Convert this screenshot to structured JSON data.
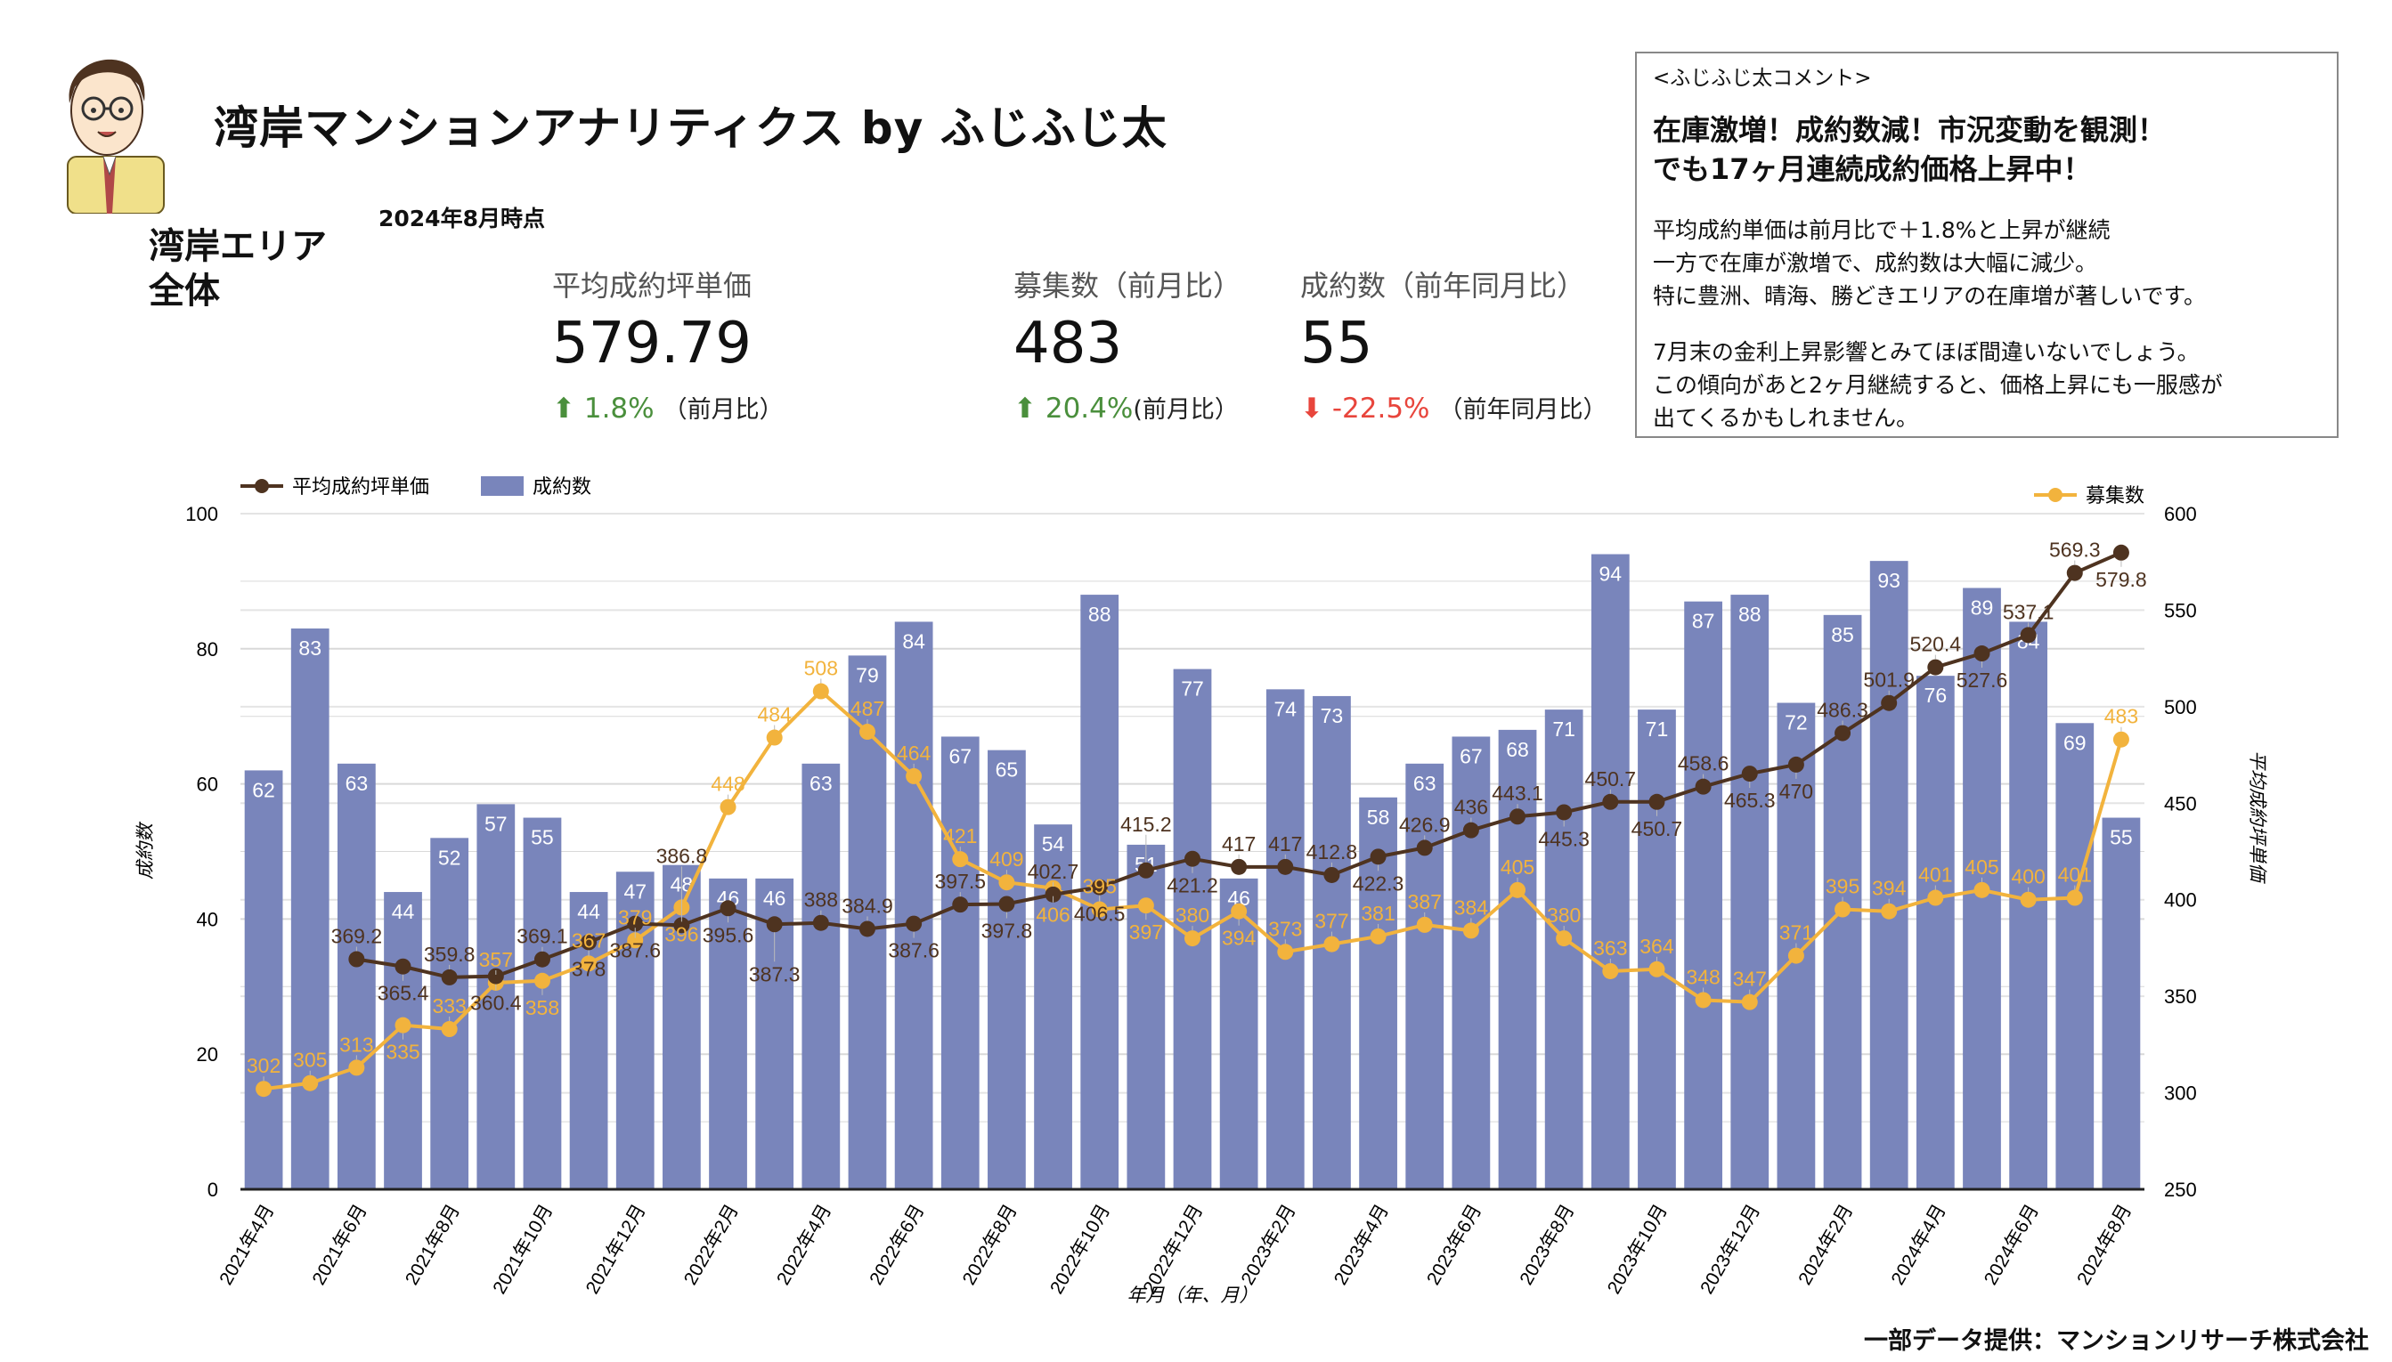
{
  "header": {
    "title": "湾岸マンションアナリティクス by ふじふじ太",
    "as_of": "2024年8月時点",
    "area": "湾岸エリア全体"
  },
  "kpis": [
    {
      "label": "平均成約坪単価",
      "value": "579.79",
      "direction": "up",
      "change": "1.8%",
      "note": "（前月比）"
    },
    {
      "label": "募集数（前月比）",
      "value": "483",
      "direction": "up",
      "change": "20.4%",
      "note": "(前月比）"
    },
    {
      "label": "成約数（前年同月比）",
      "value": "55",
      "direction": "down",
      "change": "-22.5%",
      "note": "（前年同月比）"
    }
  ],
  "comment": {
    "header": "<ふじふじ太コメント>",
    "headline_1": "在庫激増！成約数減！市況変動を観測！",
    "headline_2": "でも17ヶ月連続成約価格上昇中！",
    "paragraph_1": "平均成約単価は前月比で＋1.8%と上昇が継続\n一方で在庫が激増で、成約数は大幅に減少。\n特に豊洲、晴海、勝どきエリアの在庫増が著しいです。",
    "paragraph_2": "7月末の金利上昇影響とみてほぼ間違いないでしょう。\nこの傾向があと2ヶ月継続すると、価格上昇にも一服感が\n出てくるかもしれません。"
  },
  "footer": "一部データ提供：マンションリサーチ株式会社",
  "colors": {
    "bars": "#7985bb",
    "price_line": "#4e3320",
    "listings_line": "#f2b33d",
    "up": "#4a8f3c",
    "down": "#e8453c"
  },
  "chart_data": {
    "type": "bar+line",
    "xlabel": "年月（年、月）",
    "ylabel_left": "成約数",
    "ylabel_right": "平均成約坪単価",
    "ylim_left": [
      0,
      100
    ],
    "yticks_left": [
      0,
      20,
      40,
      60,
      80,
      100
    ],
    "ylim_right": [
      250,
      600
    ],
    "yticks_right": [
      250,
      300,
      350,
      400,
      450,
      500,
      550,
      600
    ],
    "grid": true,
    "legend_left": [
      "平均成約坪単価",
      "成約数"
    ],
    "legend_right": [
      "募集数"
    ],
    "categories": [
      "2021-04",
      "2021-05",
      "2021-06",
      "2021-07",
      "2021-08",
      "2021-09",
      "2021-10",
      "2021-11",
      "2021-12",
      "2022-01",
      "2022-02",
      "2022-03",
      "2022-04",
      "2022-05",
      "2022-06",
      "2022-07",
      "2022-08",
      "2022-09",
      "2022-10",
      "2022-11",
      "2022-12",
      "2023-01",
      "2023-02",
      "2023-03",
      "2023-04",
      "2023-05",
      "2023-06",
      "2023-07",
      "2023-08",
      "2023-09",
      "2023-10",
      "2023-11",
      "2023-12",
      "2024-01",
      "2024-02",
      "2024-03",
      "2024-04",
      "2024-05",
      "2024-06",
      "2024-07",
      "2024-08"
    ],
    "tick_labels": [
      "2021年4月",
      "2021年6月",
      "2021年8月",
      "2021年10月",
      "2021年12月",
      "2022年2月",
      "2022年4月",
      "2022年6月",
      "2022年8月",
      "2022年10月",
      "2022年12月",
      "2023年2月",
      "2023年4月",
      "2023年6月",
      "2023年8月",
      "2023年10月",
      "2023年12月",
      "2024年2月",
      "2024年4月",
      "2024年6月",
      "2024年8月"
    ],
    "series": [
      {
        "name": "成約数",
        "type": "bar",
        "axis": "left",
        "values": [
          62,
          83,
          63,
          44,
          52,
          57,
          55,
          44,
          47,
          48,
          46,
          46,
          63,
          79,
          84,
          67,
          65,
          54,
          88,
          51,
          77,
          46,
          74,
          73,
          58,
          63,
          67,
          68,
          71,
          94,
          71,
          87,
          88,
          72,
          85,
          93,
          76,
          89,
          84,
          69,
          55
        ]
      },
      {
        "name": "平均成約坪単価",
        "type": "line",
        "axis": "right",
        "values": [
          null,
          null,
          369.2,
          365.4,
          359.8,
          360.4,
          369.1,
          378,
          387.6,
          386.8,
          395.6,
          387.3,
          388,
          384.9,
          387.6,
          397.5,
          397.8,
          402.7,
          406.5,
          415.2,
          421.2,
          417,
          417,
          412.8,
          422.3,
          426.9,
          436,
          443.1,
          445.3,
          450.7,
          450.7,
          458.6,
          465.3,
          470,
          486.3,
          501.9,
          520.4,
          527.6,
          537.1,
          569.3,
          579.8
        ]
      },
      {
        "name": "募集数",
        "type": "line",
        "axis": "right",
        "values": [
          302,
          305,
          313,
          335,
          333,
          357,
          358,
          367,
          379,
          396,
          448,
          484,
          508,
          487,
          464,
          421,
          409,
          406,
          395,
          397,
          380,
          394,
          373,
          377,
          381,
          387,
          384,
          405,
          380,
          363,
          364,
          348,
          347,
          371,
          395,
          394,
          401,
          405,
          400,
          401,
          483
        ]
      }
    ]
  }
}
